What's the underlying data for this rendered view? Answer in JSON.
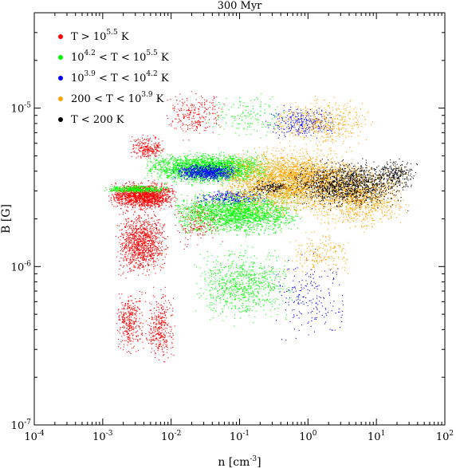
{
  "chart_data": {
    "type": "scatter",
    "title": "300 Myr",
    "xlabel": {
      "base": "n [cm",
      "exp": "-3",
      "tail": "]"
    },
    "ylabel": "B [G]",
    "xscale": "log",
    "yscale": "log",
    "xlim": [
      0.0001,
      100
    ],
    "ylim": [
      1e-07,
      4e-05
    ],
    "x_tick_labels": [
      {
        "base": "10",
        "exp": "-4"
      },
      {
        "base": "10",
        "exp": "-3"
      },
      {
        "base": "10",
        "exp": "-2"
      },
      {
        "base": "10",
        "exp": "-1"
      },
      {
        "base": "10",
        "exp": "0"
      },
      {
        "base": "10",
        "exp": "1"
      },
      {
        "base": "10",
        "exp": "2"
      }
    ],
    "x_tick_values": [
      0.0001,
      0.001,
      0.01,
      0.1,
      1,
      10,
      100
    ],
    "y_tick_labels": [
      {
        "base": "10",
        "exp": "-7"
      },
      {
        "base": "10",
        "exp": "-6"
      },
      {
        "base": "10",
        "exp": "-5"
      }
    ],
    "y_tick_values": [
      1e-07,
      1e-06,
      1e-05
    ],
    "grid": false,
    "legend_position": "top-left",
    "series": [
      {
        "name": "T > 10^5.5 K",
        "legend_parts": [
          {
            "t": "T > 10"
          },
          {
            "t": "5.5",
            "sup": true
          },
          {
            "t": " K"
          }
        ],
        "color": "#ff0000",
        "clusters": [
          {
            "x": [
              0.0012,
              0.012
            ],
            "y": [
              2.2e-06,
              3.6e-06
            ],
            "n": 1500
          },
          {
            "x": [
              0.0015,
              0.009
            ],
            "y": [
              8e-07,
              2.5e-06
            ],
            "n": 1100
          },
          {
            "x": [
              0.0015,
              0.004
            ],
            "y": [
              2.5e-07,
              8e-07
            ],
            "n": 350
          },
          {
            "x": [
              0.004,
              0.012
            ],
            "y": [
              2.2e-07,
              8e-07
            ],
            "n": 350
          },
          {
            "x": [
              0.0025,
              0.008
            ],
            "y": [
              4.5e-06,
              7e-06
            ],
            "n": 250
          },
          {
            "x": [
              0.008,
              0.06
            ],
            "y": [
              6e-06,
              1.4e-05
            ],
            "n": 250
          },
          {
            "x": [
              0.01,
              0.06
            ],
            "y": [
              1.2e-06,
              3e-06
            ],
            "n": 200
          }
        ]
      },
      {
        "name": "10^4.2 < T < 10^5.5 K",
        "legend_parts": [
          {
            "t": "10"
          },
          {
            "t": "4.2",
            "sup": true
          },
          {
            "t": " < T < 10"
          },
          {
            "t": "5.5",
            "sup": true
          },
          {
            "t": " K"
          }
        ],
        "color": "#00ff00",
        "clusters": [
          {
            "x": [
              0.001,
              0.01
            ],
            "y": [
              2.9e-06,
              3.3e-06
            ],
            "n": 400
          },
          {
            "x": [
              0.004,
              0.3
            ],
            "y": [
              3.2e-06,
              5.5e-06
            ],
            "n": 2500
          },
          {
            "x": [
              0.01,
              0.8
            ],
            "y": [
              1.5e-06,
              3.2e-06
            ],
            "n": 2200
          },
          {
            "x": [
              0.02,
              0.6
            ],
            "y": [
              4e-07,
              1.5e-06
            ],
            "n": 800
          },
          {
            "x": [
              0.03,
              0.5
            ],
            "y": [
              6e-06,
              1.3e-05
            ],
            "n": 150
          }
        ]
      },
      {
        "name": "10^3.9 < T < 10^4.2 K",
        "legend_parts": [
          {
            "t": "10"
          },
          {
            "t": "3.9",
            "sup": true
          },
          {
            "t": " < T < 10"
          },
          {
            "t": "4.2",
            "sup": true
          },
          {
            "t": " K"
          }
        ],
        "color": "#0000ff",
        "clusters": [
          {
            "x": [
              0.01,
              0.1
            ],
            "y": [
              3.4e-06,
              4.6e-06
            ],
            "n": 700
          },
          {
            "x": [
              0.2,
              3
            ],
            "y": [
              6e-06,
              1.1e-05
            ],
            "n": 300
          },
          {
            "x": [
              0.3,
              4
            ],
            "y": [
              3e-07,
              1.5e-06
            ],
            "n": 200
          },
          {
            "x": [
              0.02,
              0.3
            ],
            "y": [
              2.4e-06,
              3.2e-06
            ],
            "n": 250
          }
        ]
      },
      {
        "name": "200 < T < 10^3.9 K",
        "legend_parts": [
          {
            "t": "200 < T < 10"
          },
          {
            "t": "3.9",
            "sup": true
          },
          {
            "t": " K"
          }
        ],
        "color": "#ffa500",
        "clusters": [
          {
            "x": [
              0.05,
              6
            ],
            "y": [
              2e-06,
              6e-06
            ],
            "n": 3200
          },
          {
            "x": [
              0.3,
              10
            ],
            "y": [
              5e-06,
              1.3e-05
            ],
            "n": 500
          },
          {
            "x": [
              1,
              30
            ],
            "y": [
              1.6e-06,
              5e-06
            ],
            "n": 1200
          },
          {
            "x": [
              0.4,
              5
            ],
            "y": [
              8e-07,
              1.8e-06
            ],
            "n": 200
          }
        ]
      },
      {
        "name": "T < 200 K",
        "legend_parts": [
          {
            "t": "T < 200 K"
          }
        ],
        "color": "#000000",
        "clusters": [
          {
            "x": [
              0.5,
              30
            ],
            "y": [
              2.2e-06,
              5e-06
            ],
            "n": 1300
          },
          {
            "x": [
              0.15,
              0.6
            ],
            "y": [
              2.8e-06,
              3.6e-06
            ],
            "n": 150
          },
          {
            "x": [
              10,
              40
            ],
            "y": [
              3e-06,
              5e-06
            ],
            "n": 200
          }
        ]
      }
    ]
  }
}
